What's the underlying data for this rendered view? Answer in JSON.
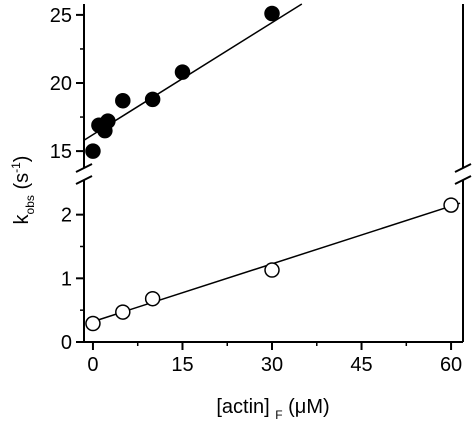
{
  "chart_data": {
    "type": "scatter",
    "x_axis": {
      "range": [
        -1.5,
        62
      ],
      "ticks": [
        0,
        15,
        30,
        45,
        60
      ],
      "tick_labels": [
        "0",
        "15",
        "30",
        "45",
        "60"
      ],
      "label_main": "[actin]",
      "label_sub": "F",
      "label_unit": "(μM)"
    },
    "y_axis": {
      "broken": true,
      "lower_segment": {
        "range": [
          0,
          2.45
        ],
        "ticks": [
          0,
          1,
          2
        ],
        "tick_labels": [
          "0",
          "1",
          "2"
        ]
      },
      "upper_segment": {
        "range": [
          14.2,
          25.8
        ],
        "ticks": [
          15,
          20,
          25
        ],
        "tick_labels": [
          "15",
          "20",
          "25"
        ]
      },
      "label_main": "k",
      "label_sub": "obs",
      "label_unit_open": "(s",
      "label_sup": "-1",
      "label_unit_close": ")"
    },
    "series": [
      {
        "marker": "filled-circle",
        "segment": "upper",
        "color": "#000000",
        "points": [
          {
            "x": 0,
            "y": 15.0
          },
          {
            "x": 1,
            "y": 16.9
          },
          {
            "x": 2,
            "y": 16.5
          },
          {
            "x": 2.5,
            "y": 17.2
          },
          {
            "x": 5,
            "y": 18.7
          },
          {
            "x": 10,
            "y": 18.8
          },
          {
            "x": 15,
            "y": 20.8
          },
          {
            "x": 30,
            "y": 25.1
          }
        ],
        "fit": {
          "x0": -1.5,
          "y0": 15.8,
          "x1": 35,
          "y1": 25.8
        }
      },
      {
        "marker": "open-circle",
        "segment": "lower",
        "color": "#000000",
        "points": [
          {
            "x": 0,
            "y": 0.29
          },
          {
            "x": 5,
            "y": 0.47
          },
          {
            "x": 10,
            "y": 0.68
          },
          {
            "x": 30,
            "y": 1.13
          },
          {
            "x": 60,
            "y": 2.15
          }
        ],
        "fit": {
          "x0": 0,
          "y0": 0.32,
          "x1": 61.5,
          "y1": 2.18
        }
      }
    ],
    "grid": false,
    "legend": "none"
  }
}
